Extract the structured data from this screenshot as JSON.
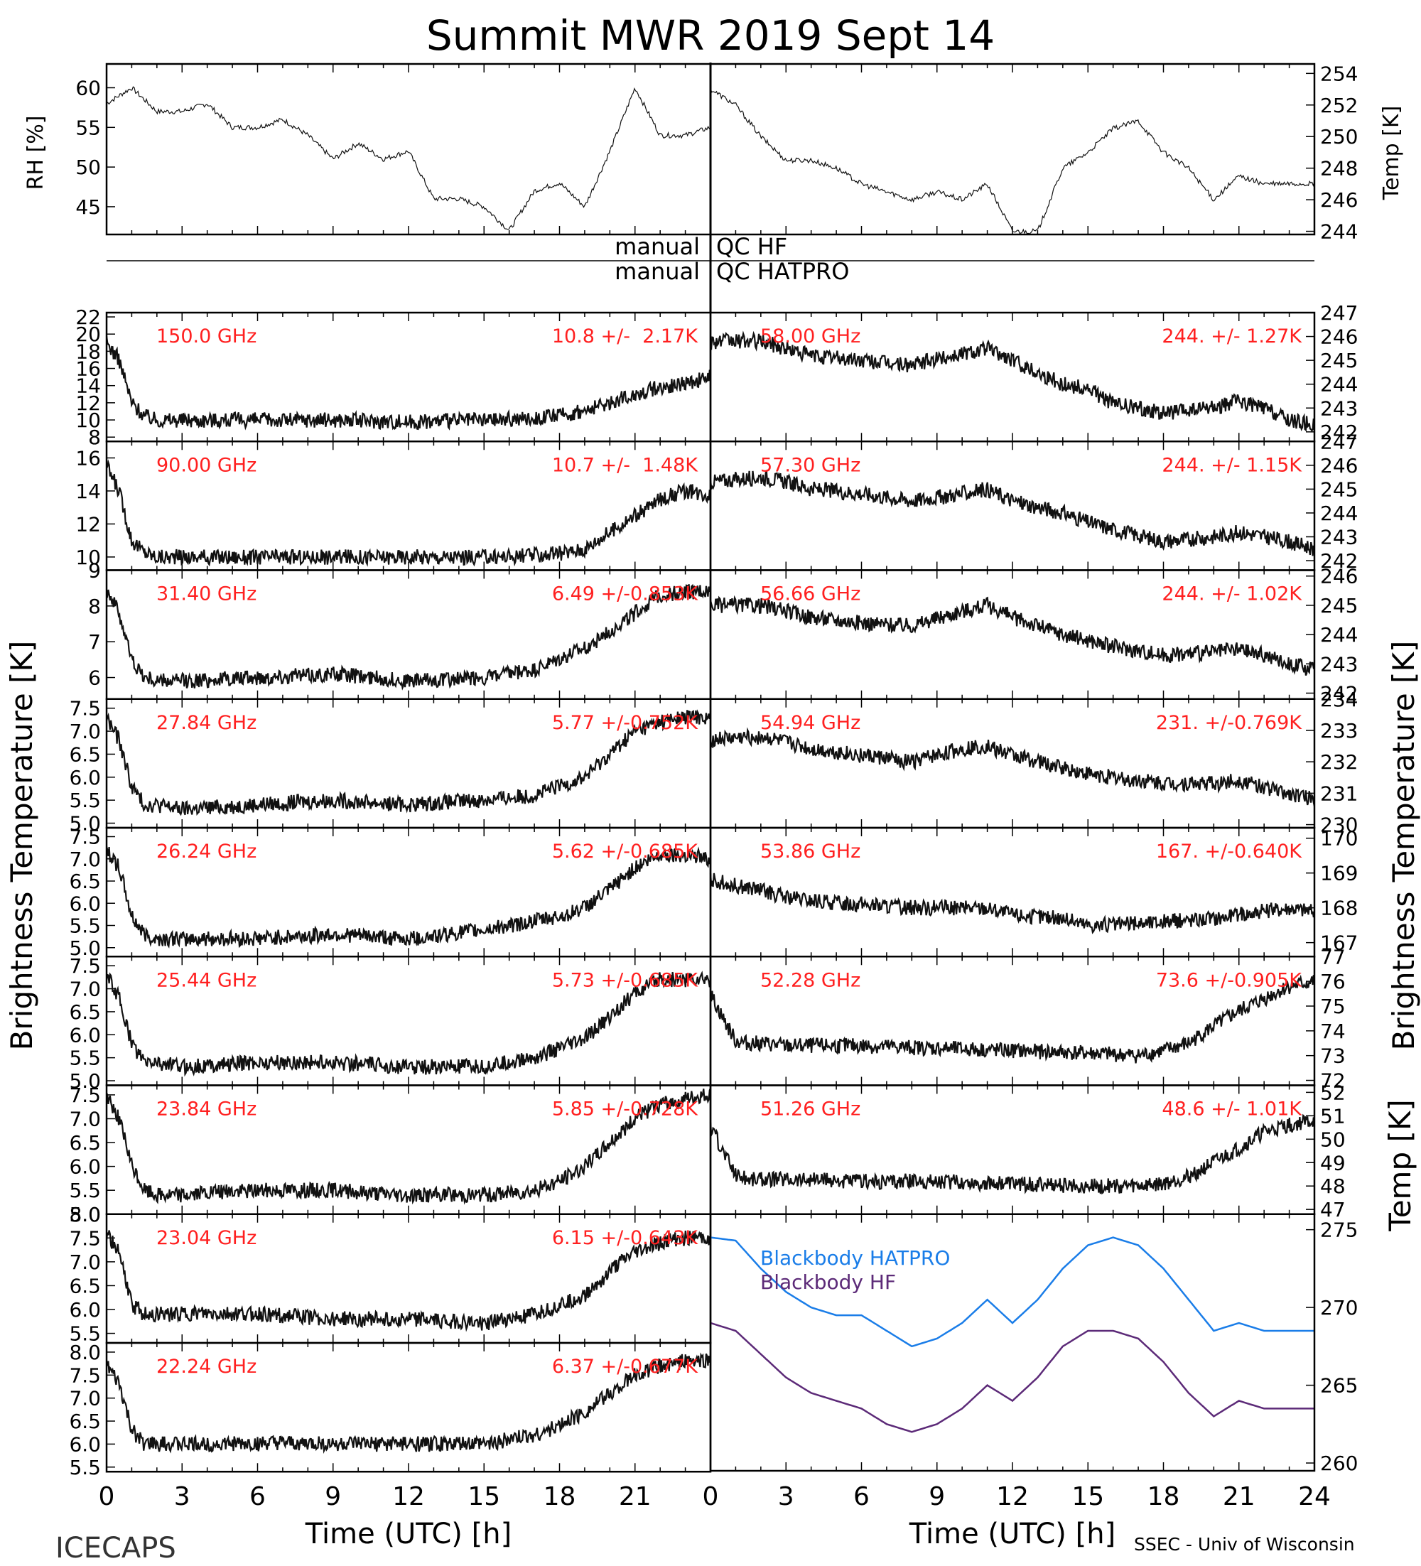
{
  "title": "Summit MWR 2019 Sept 14",
  "footer_left": "ICECAPS",
  "footer_right": "SSEC - Univ of Wisconsin",
  "xlabel": "Time (UTC) [h]",
  "xticks": [
    "0",
    "3",
    "6",
    "9",
    "12",
    "15",
    "18",
    "21",
    "24"
  ],
  "left_ylabel": "Brightness Temperature [K]",
  "right_ylabel": "Brightness Temperature [K]",
  "qc": {
    "sep": "manual",
    "hf": "QC HF",
    "hatpro": "QC HATPRO"
  },
  "colors": {
    "label_red": "#ff2020",
    "hatpro_blue": "#1a7de8",
    "hf_purple": "#5c2a78"
  },
  "chart_data": [
    {
      "type": "line",
      "panel": "rh",
      "ylabel": "RH [%]",
      "ylim": [
        41.5,
        63
      ],
      "yticks": [
        45,
        50,
        55,
        60
      ],
      "x": [
        0,
        1,
        2,
        3,
        4,
        5,
        6,
        7,
        8,
        9,
        10,
        11,
        12,
        13,
        14,
        15,
        16,
        17,
        18,
        19,
        20,
        21,
        22,
        23,
        24
      ],
      "values": [
        58,
        60,
        57,
        57,
        58,
        55,
        55,
        56,
        54,
        51,
        53,
        51,
        52,
        46,
        46,
        45,
        42,
        47,
        48,
        45,
        52,
        60,
        54,
        54,
        55
      ]
    },
    {
      "type": "line",
      "panel": "temp",
      "ylabel": "Temp [K]",
      "ylim": [
        243.8,
        254.6
      ],
      "yticks": [
        244,
        246,
        248,
        250,
        252,
        254
      ],
      "x": [
        0,
        1,
        2,
        3,
        4,
        5,
        6,
        7,
        8,
        9,
        10,
        11,
        12,
        13,
        14,
        15,
        16,
        17,
        18,
        19,
        20,
        21,
        22,
        23,
        24
      ],
      "values": [
        253,
        252,
        250,
        248.5,
        248.5,
        248,
        247,
        246.5,
        246,
        246.5,
        246,
        247,
        244,
        244,
        248,
        249,
        250.5,
        251,
        249,
        248,
        246,
        247.5,
        247,
        247,
        247
      ]
    },
    {
      "type": "line",
      "panel": "tb",
      "side": "left",
      "label": "150.0 GHz",
      "stat": "10.8 +/-  2.17K",
      "ylim": [
        7.5,
        22.5
      ],
      "yticks": [
        8,
        10,
        12,
        14,
        16,
        18,
        20,
        22
      ],
      "x": [
        0,
        0.5,
        1,
        1.5,
        2,
        3,
        6,
        9,
        12,
        15,
        17,
        18,
        19,
        20,
        21,
        22,
        23,
        24
      ],
      "values": [
        19,
        17,
        12,
        10.5,
        10,
        10,
        10,
        10,
        9.8,
        10,
        10.2,
        10.5,
        11,
        12,
        13,
        13.8,
        14.2,
        15
      ]
    },
    {
      "type": "line",
      "panel": "tb",
      "side": "right",
      "label": "58.00 GHz",
      "stat": "244. +/- 1.27K",
      "ylim": [
        241.6,
        247
      ],
      "yticks": [
        242,
        243,
        244,
        245,
        246,
        247
      ],
      "x": [
        0,
        2,
        3,
        4,
        6,
        8,
        10,
        11,
        12,
        14,
        15,
        16,
        18,
        20,
        21,
        22,
        23,
        24
      ],
      "values": [
        245.8,
        245.8,
        245.5,
        245.2,
        245,
        244.8,
        245.3,
        245.5,
        245,
        244,
        243.8,
        243.2,
        242.8,
        243,
        243.3,
        243,
        242.5,
        242.3
      ]
    },
    {
      "type": "line",
      "panel": "tb",
      "side": "left",
      "label": "90.00 GHz",
      "stat": "10.7 +/-  1.48K",
      "ylim": [
        9.2,
        17
      ],
      "yticks": [
        10,
        12,
        14,
        16
      ],
      "x": [
        0,
        0.5,
        1,
        1.5,
        2,
        3,
        6,
        9,
        12,
        15,
        17,
        18,
        19,
        20,
        21,
        22,
        23,
        24
      ],
      "values": [
        15.5,
        14,
        11,
        10.3,
        10,
        10,
        10,
        10,
        10,
        10,
        10.1,
        10.2,
        10.5,
        11.5,
        12.5,
        13.5,
        14,
        13.8
      ]
    },
    {
      "type": "line",
      "panel": "tb",
      "side": "right",
      "label": "57.30 GHz",
      "stat": "244. +/- 1.15K",
      "ylim": [
        241.6,
        247
      ],
      "yticks": [
        242,
        243,
        244,
        245,
        246,
        247
      ],
      "x": [
        0,
        2,
        3,
        4,
        6,
        8,
        10,
        11,
        12,
        14,
        15,
        16,
        18,
        20,
        21,
        22,
        23,
        24
      ],
      "values": [
        245.3,
        245.5,
        245.3,
        245,
        244.8,
        244.5,
        244.8,
        245,
        244.5,
        244,
        243.6,
        243.3,
        242.8,
        243,
        243.2,
        243,
        242.8,
        242.5
      ]
    },
    {
      "type": "line",
      "panel": "tb",
      "side": "right",
      "label": "56.66 GHz",
      "stat": "244. +/- 1.02K",
      "ylim": [
        241.8,
        246.2
      ],
      "yticks": [
        242,
        243,
        244,
        245,
        246
      ],
      "x": [
        0,
        2,
        3,
        4,
        6,
        8,
        10,
        11,
        12,
        14,
        15,
        16,
        18,
        20,
        21,
        22,
        23,
        24
      ],
      "values": [
        245,
        245,
        244.8,
        244.6,
        244.4,
        244.3,
        244.8,
        245,
        244.6,
        244,
        243.8,
        243.6,
        243.3,
        243.4,
        243.5,
        243.3,
        243,
        242.8
      ]
    },
    {
      "type": "line",
      "panel": "tb",
      "side": "left",
      "label": "31.40 GHz",
      "stat": "6.49 +/-0.853K",
      "ylim": [
        5.4,
        9
      ],
      "yticks": [
        6,
        7,
        8,
        9
      ],
      "x": [
        0,
        0.5,
        1,
        1.5,
        2,
        3,
        6,
        9,
        12,
        15,
        17,
        18,
        19,
        20,
        21,
        22,
        23,
        24
      ],
      "values": [
        8.5,
        7.8,
        6.5,
        6,
        5.9,
        5.9,
        6,
        6.1,
        5.9,
        6,
        6.2,
        6.5,
        6.8,
        7.3,
        7.8,
        8.3,
        8.4,
        8.4
      ]
    },
    {
      "type": "line",
      "panel": "tb",
      "side": "left",
      "label": "27.84 GHz",
      "stat": "5.77 +/-0.752K",
      "ylim": [
        4.9,
        7.7
      ],
      "yticks": [
        5.0,
        5.5,
        6.0,
        6.5,
        7.0,
        7.5
      ],
      "x": [
        0,
        0.5,
        1,
        1.5,
        2,
        3,
        6,
        9,
        12,
        15,
        17,
        18,
        19,
        20,
        21,
        22,
        23,
        24
      ],
      "values": [
        7.3,
        6.8,
        5.8,
        5.4,
        5.4,
        5.3,
        5.4,
        5.5,
        5.4,
        5.5,
        5.6,
        5.8,
        6,
        6.5,
        7,
        7.2,
        7.3,
        7.3
      ]
    },
    {
      "type": "line",
      "panel": "tb",
      "side": "right",
      "label": "54.94 GHz",
      "stat": "231. +/-0.769K",
      "ylim": [
        229.9,
        234
      ],
      "yticks": [
        230,
        231,
        232,
        233,
        234
      ],
      "x": [
        0,
        2,
        3,
        4,
        6,
        8,
        10,
        11,
        12,
        14,
        15,
        16,
        18,
        20,
        21,
        22,
        23,
        24
      ],
      "values": [
        232.7,
        232.8,
        232.6,
        232.4,
        232.2,
        232,
        232.4,
        232.5,
        232.2,
        231.8,
        231.6,
        231.5,
        231.3,
        231.3,
        231.4,
        231.2,
        231,
        230.8
      ]
    },
    {
      "type": "line",
      "panel": "tb",
      "side": "left",
      "label": "26.24 GHz",
      "stat": "5.62 +/-0.685K",
      "ylim": [
        4.8,
        7.7
      ],
      "yticks": [
        5.0,
        5.5,
        6.0,
        6.5,
        7.0,
        7.5
      ],
      "x": [
        0,
        0.5,
        1,
        1.5,
        2,
        3,
        6,
        9,
        12,
        15,
        17,
        18,
        19,
        20,
        21,
        22,
        23,
        24
      ],
      "values": [
        7.2,
        6.8,
        5.7,
        5.3,
        5.2,
        5.2,
        5.2,
        5.3,
        5.2,
        5.4,
        5.6,
        5.7,
        5.9,
        6.3,
        6.8,
        7.1,
        7.1,
        7
      ]
    },
    {
      "type": "line",
      "panel": "tb",
      "side": "right",
      "label": "53.86 GHz",
      "stat": "167. +/-0.640K",
      "ylim": [
        166.6,
        170.3
      ],
      "yticks": [
        167,
        168,
        169,
        170
      ],
      "x": [
        0,
        2,
        3,
        4,
        6,
        8,
        10,
        11,
        12,
        14,
        15,
        16,
        18,
        20,
        21,
        22,
        23,
        24
      ],
      "values": [
        168.8,
        168.5,
        168.3,
        168.2,
        168.1,
        168,
        168,
        168,
        167.8,
        167.7,
        167.5,
        167.5,
        167.6,
        167.7,
        167.8,
        167.9,
        168,
        167.9
      ]
    },
    {
      "type": "line",
      "panel": "tb",
      "side": "left",
      "label": "25.44 GHz",
      "stat": "5.73 +/-0.685K",
      "ylim": [
        4.9,
        7.7
      ],
      "yticks": [
        5.0,
        5.5,
        6.0,
        6.5,
        7.0,
        7.5
      ],
      "x": [
        0,
        0.5,
        1,
        1.5,
        2,
        3,
        6,
        9,
        12,
        15,
        17,
        18,
        19,
        20,
        21,
        22,
        23,
        24
      ],
      "values": [
        7.3,
        6.8,
        5.8,
        5.4,
        5.4,
        5.3,
        5.4,
        5.4,
        5.3,
        5.3,
        5.5,
        5.7,
        5.9,
        6.4,
        6.9,
        7.2,
        7.2,
        7.2
      ]
    },
    {
      "type": "line",
      "panel": "tb",
      "side": "right",
      "label": "52.28 GHz",
      "stat": "73.6 +/-0.905K",
      "ylim": [
        71.8,
        77
      ],
      "yticks": [
        72,
        73,
        74,
        75,
        76,
        77
      ],
      "x": [
        0,
        0.5,
        1,
        1.5,
        2,
        3,
        6,
        9,
        12,
        15,
        17,
        18,
        19,
        20,
        21,
        22,
        23,
        24
      ],
      "values": [
        75.5,
        74.5,
        73.6,
        73.5,
        73.5,
        73.4,
        73.4,
        73.3,
        73.2,
        73.1,
        73,
        73.2,
        73.5,
        74.2,
        74.8,
        75.3,
        75.8,
        76
      ]
    },
    {
      "type": "line",
      "panel": "tb",
      "side": "left",
      "label": "23.84 GHz",
      "stat": "5.85 +/-0.728K",
      "ylim": [
        5.0,
        7.7
      ],
      "yticks": [
        5.0,
        5.5,
        6.0,
        6.5,
        7.0,
        7.5
      ],
      "x": [
        0,
        0.5,
        1,
        1.5,
        2,
        3,
        6,
        9,
        12,
        15,
        17,
        18,
        19,
        20,
        21,
        22,
        23,
        24
      ],
      "values": [
        7.5,
        7,
        6,
        5.5,
        5.4,
        5.4,
        5.5,
        5.5,
        5.4,
        5.4,
        5.5,
        5.7,
        6,
        6.5,
        7,
        7.3,
        7.4,
        7.5
      ]
    },
    {
      "type": "line",
      "panel": "tb",
      "side": "right",
      "label": "51.26 GHz",
      "stat": "48.6 +/- 1.01K",
      "ylim": [
        46.8,
        52.3
      ],
      "yticks": [
        47,
        48,
        49,
        50,
        51,
        52
      ],
      "x": [
        0,
        0.5,
        1,
        1.5,
        2,
        3,
        6,
        9,
        12,
        15,
        17,
        18,
        19,
        20,
        21,
        22,
        23,
        24
      ],
      "values": [
        50.5,
        49.5,
        48.5,
        48.3,
        48.3,
        48.3,
        48.2,
        48.2,
        48.1,
        48,
        48,
        48.1,
        48.4,
        49,
        49.6,
        50.3,
        50.6,
        50.8
      ]
    },
    {
      "type": "line",
      "panel": "tb",
      "side": "left",
      "label": "23.04 GHz",
      "stat": "6.15 +/-0.643K",
      "ylim": [
        5.3,
        8.0
      ],
      "yticks": [
        5.5,
        6.0,
        6.5,
        7.0,
        7.5,
        8.0
      ],
      "x": [
        0,
        0.5,
        1,
        1.5,
        2,
        3,
        6,
        9,
        12,
        15,
        17,
        18,
        19,
        20,
        21,
        22,
        23,
        24
      ],
      "values": [
        7.6,
        7.2,
        6.1,
        5.9,
        5.9,
        5.9,
        5.9,
        5.8,
        5.8,
        5.7,
        5.9,
        6.1,
        6.3,
        6.8,
        7.2,
        7.4,
        7.5,
        7.5
      ]
    },
    {
      "type": "line",
      "panel": "bb",
      "side": "right",
      "ylabel": "Temp [K]",
      "ylim": [
        259.5,
        276
      ],
      "yticks": [
        260,
        265,
        270,
        275
      ],
      "x": [
        0,
        1,
        2,
        3,
        4,
        5,
        6,
        7,
        8,
        9,
        10,
        11,
        12,
        13,
        14,
        15,
        16,
        17,
        18,
        19,
        20,
        21,
        22,
        23,
        24
      ],
      "series": [
        {
          "name": "Blackbody HATPRO",
          "values": [
            274.5,
            274.3,
            272.5,
            271,
            270,
            269.5,
            269.5,
            268.5,
            267.5,
            268,
            269,
            270.5,
            269,
            270.5,
            272.5,
            274,
            274.5,
            274,
            272.5,
            270.5,
            268.5,
            269,
            268.5,
            268.5,
            268.5
          ]
        },
        {
          "name": "Blackbody HF",
          "values": [
            269,
            268.5,
            267,
            265.5,
            264.5,
            264,
            263.5,
            262.5,
            262,
            262.5,
            263.5,
            265,
            264,
            265.5,
            267.5,
            268.5,
            268.5,
            268,
            266.5,
            264.5,
            263,
            264,
            263.5,
            263.5,
            263.5
          ]
        }
      ]
    },
    {
      "type": "line",
      "panel": "tb",
      "side": "left",
      "label": "22.24 GHz",
      "stat": "6.37 +/-0.677K",
      "ylim": [
        5.4,
        8.2
      ],
      "yticks": [
        5.5,
        6.0,
        6.5,
        7.0,
        7.5,
        8.0
      ],
      "x": [
        0,
        0.5,
        1,
        1.5,
        2,
        3,
        6,
        9,
        12,
        15,
        17,
        18,
        19,
        20,
        21,
        22,
        23,
        24
      ],
      "values": [
        7.7,
        7.3,
        6.3,
        6,
        6,
        6,
        6,
        6,
        6,
        6,
        6.2,
        6.4,
        6.7,
        7.1,
        7.5,
        7.7,
        7.8,
        7.8
      ]
    }
  ]
}
